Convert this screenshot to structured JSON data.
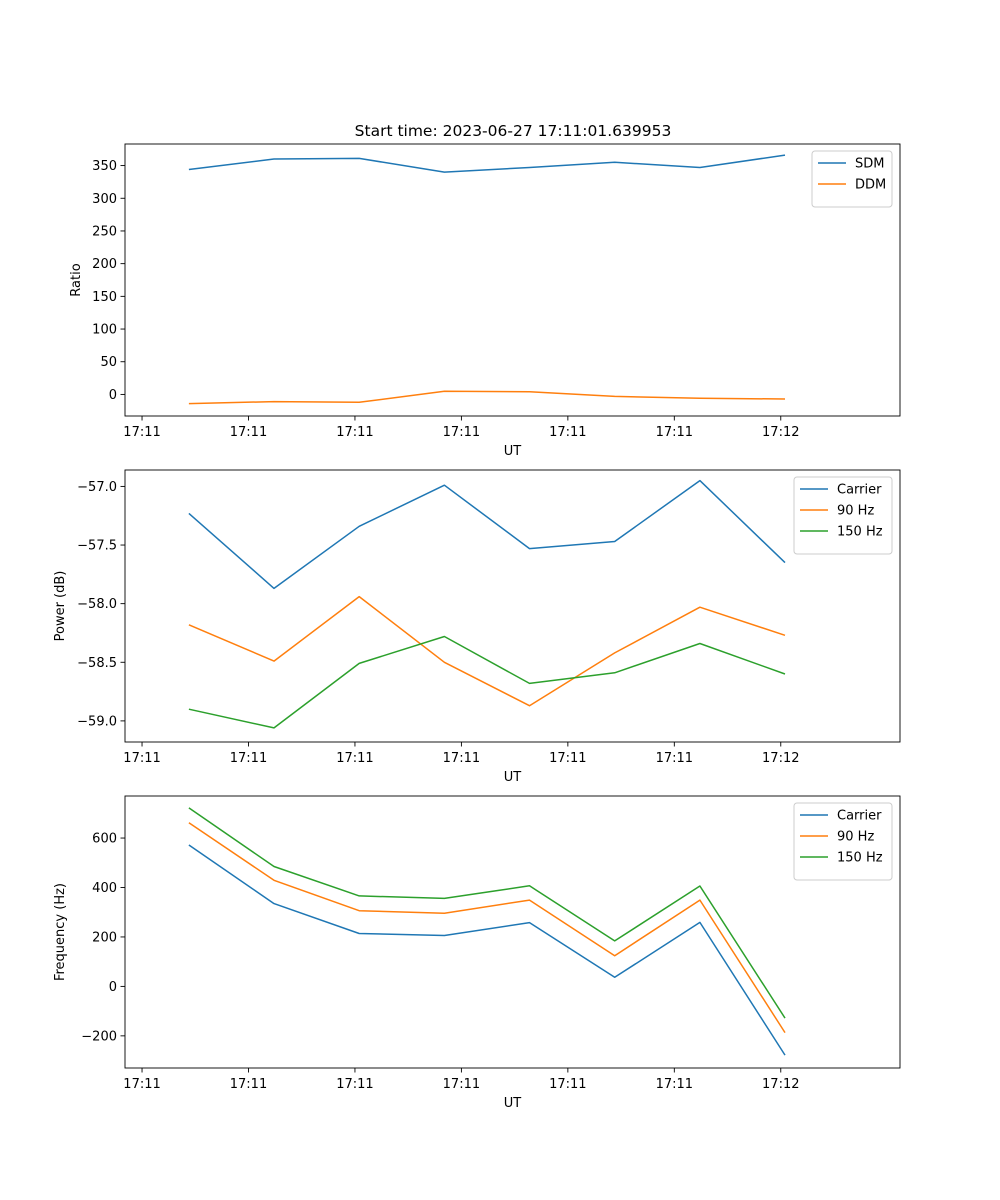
{
  "figure": {
    "title": "Start time: 2023-06-27 17:11:01.639953"
  },
  "chart_data": [
    {
      "type": "line",
      "title": "Start time: 2023-06-27 17:11:01.639953",
      "xlabel": "UT",
      "ylabel": "Ratio",
      "x_tick_labels": [
        "17:11",
        "17:11",
        "17:11",
        "17:11",
        "17:11",
        "17:11",
        "17:12"
      ],
      "xlim": [
        -0.2,
        8.9
      ],
      "ylim": [
        -33,
        383
      ],
      "yticks": [
        0,
        50,
        100,
        150,
        200,
        250,
        300,
        350
      ],
      "y_tick_labels": [
        "0",
        "50",
        "100",
        "150",
        "200",
        "250",
        "300",
        "350"
      ],
      "legend_position": "top-right",
      "grid": false,
      "x": [
        0.55,
        1.55,
        2.55,
        3.55,
        4.55,
        5.55,
        6.55,
        7.55
      ],
      "series": [
        {
          "name": "SDM",
          "color": "#1f77b4",
          "values": [
            344,
            360,
            361,
            340,
            347,
            355,
            347,
            366
          ]
        },
        {
          "name": "DDM",
          "color": "#ff7f0e",
          "values": [
            -14,
            -11,
            -12,
            5,
            4,
            -3,
            -6,
            -7
          ]
        }
      ]
    },
    {
      "type": "line",
      "xlabel": "UT",
      "ylabel": "Power (dB)",
      "x_tick_labels": [
        "17:11",
        "17:11",
        "17:11",
        "17:11",
        "17:11",
        "17:11",
        "17:12"
      ],
      "xlim": [
        -0.2,
        8.9
      ],
      "ylim": [
        -59.18,
        -56.86
      ],
      "yticks": [
        -59.0,
        -58.5,
        -58.0,
        -57.5,
        -57.0
      ],
      "y_tick_labels": [
        "−59.0",
        "−58.5",
        "−58.0",
        "−57.5",
        "−57.0"
      ],
      "legend_position": "top-right",
      "grid": false,
      "x": [
        0.55,
        1.55,
        2.55,
        3.55,
        4.55,
        5.55,
        6.55,
        7.55
      ],
      "series": [
        {
          "name": "Carrier",
          "color": "#1f77b4",
          "values": [
            -57.23,
            -57.87,
            -57.34,
            -56.99,
            -57.53,
            -57.47,
            -56.95,
            -57.65
          ]
        },
        {
          "name": "90 Hz",
          "color": "#ff7f0e",
          "values": [
            -58.18,
            -58.49,
            -57.94,
            -58.5,
            -58.87,
            -58.42,
            -58.03,
            -58.27
          ]
        },
        {
          "name": "150 Hz",
          "color": "#2ca02c",
          "values": [
            -58.9,
            -59.06,
            -58.51,
            -58.28,
            -58.68,
            -58.59,
            -58.34,
            -58.6
          ]
        }
      ]
    },
    {
      "type": "line",
      "xlabel": "UT",
      "ylabel": "Frequency (Hz)",
      "x_tick_labels": [
        "17:11",
        "17:11",
        "17:11",
        "17:11",
        "17:11",
        "17:11",
        "17:12"
      ],
      "xlim": [
        -0.2,
        8.9
      ],
      "ylim": [
        -330,
        770
      ],
      "yticks": [
        -200,
        0,
        200,
        400,
        600
      ],
      "y_tick_labels": [
        "−200",
        "0",
        "200",
        "400",
        "600"
      ],
      "legend_position": "top-right",
      "grid": false,
      "x": [
        0.55,
        1.55,
        2.55,
        3.55,
        4.55,
        5.55,
        6.55,
        7.55
      ],
      "series": [
        {
          "name": "Carrier",
          "color": "#1f77b4",
          "values": [
            572,
            335,
            214,
            206,
            258,
            37,
            259,
            -278
          ]
        },
        {
          "name": "90 Hz",
          "color": "#ff7f0e",
          "values": [
            662,
            429,
            306,
            296,
            349,
            124,
            349,
            -187
          ]
        },
        {
          "name": "150 Hz",
          "color": "#2ca02c",
          "values": [
            722,
            485,
            366,
            356,
            407,
            184,
            406,
            -128
          ]
        }
      ]
    }
  ]
}
